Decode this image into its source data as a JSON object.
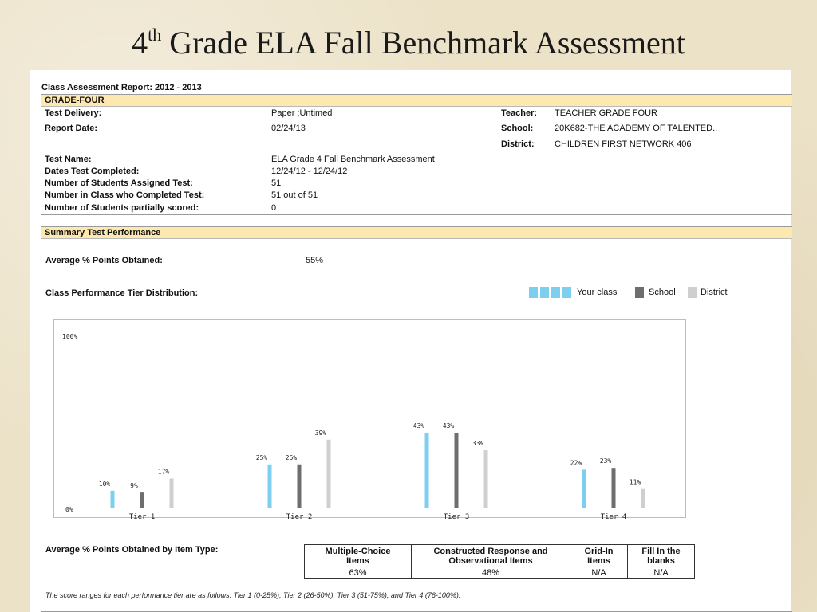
{
  "slide": {
    "title_prefix": "4",
    "title_sup": "th",
    "title_rest": " Grade ELA Fall Benchmark Assessment"
  },
  "report": {
    "title": "Class Assessment Report: 2012 - 2013",
    "grade_header": "GRADE-FOUR",
    "left_fields": [
      {
        "label": "Test Delivery:",
        "value": "Paper ;Untimed"
      },
      {
        "label": "Report Date:",
        "value": "02/24/13"
      },
      {
        "label": "Test Name:",
        "value": "ELA Grade 4 Fall Benchmark Assessment"
      },
      {
        "label": "Dates Test Completed:",
        "value": "12/24/12 - 12/24/12"
      },
      {
        "label": "Number of Students Assigned Test:",
        "value": "51"
      },
      {
        "label": "Number in Class who Completed Test:",
        "value": "51 out of 51"
      },
      {
        "label": "Number of Students partially scored:",
        "value": "0"
      }
    ],
    "right_fields": [
      {
        "label": "Teacher:",
        "value": "TEACHER GRADE FOUR"
      },
      {
        "label": "School:",
        "value": "20K682-THE ACADEMY OF TALENTED.."
      },
      {
        "label": "District:",
        "value": "CHILDREN FIRST NETWORK 406"
      }
    ],
    "summary_header": "Summary Test Performance",
    "avg_points_label": "Average % Points Obtained:",
    "avg_points_value": "55%",
    "tier_dist_label": "Class Performance Tier Distribution:",
    "item_type_label": "Average % Points Obtained by Item Type:",
    "item_table": {
      "headers": [
        [
          "Multiple-Choice",
          "Items"
        ],
        [
          "Constructed Response and",
          "Observational Items"
        ],
        [
          "Grid-In",
          "Items"
        ],
        [
          "Fill In the",
          "blanks"
        ]
      ],
      "values": [
        "63%",
        "48%",
        "N/A",
        "N/A"
      ]
    },
    "footnote": "The score ranges for each performance tier are as follows: Tier 1 (0-25%), Tier 2 (26-50%), Tier 3 (51-75%), and Tier 4 (76-100%)."
  },
  "chart_data": {
    "type": "bar",
    "categories": [
      "Tier 1",
      "Tier 2",
      "Tier 3",
      "Tier 4"
    ],
    "series": [
      {
        "name": "Your class",
        "values": [
          10,
          25,
          43,
          22
        ],
        "color": "#7ecfef"
      },
      {
        "name": "School",
        "values": [
          9,
          25,
          43,
          23
        ],
        "color": "#6e6e6e"
      },
      {
        "name": "District",
        "values": [
          17,
          39,
          33,
          11
        ],
        "color": "#cfcfcf"
      }
    ],
    "y_tick_labels": [
      "100%",
      "0%"
    ],
    "ylim": [
      0,
      100
    ],
    "legend_position": "top-right",
    "grid": false
  }
}
